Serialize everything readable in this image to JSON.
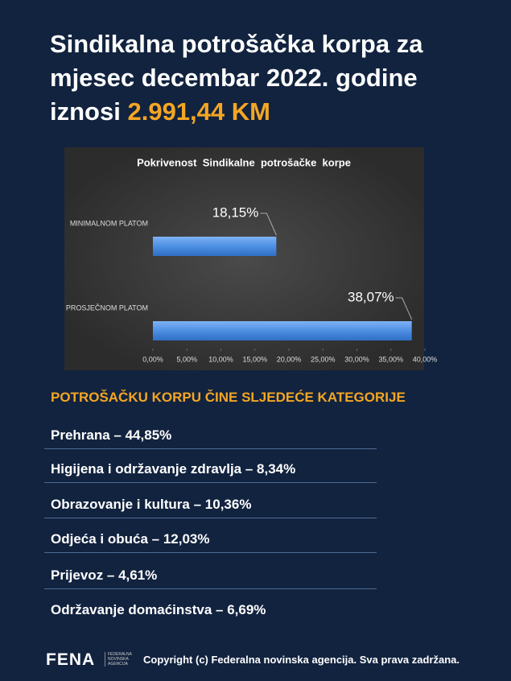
{
  "header": {
    "title": "Sindikalna potrošačka korpa za mjesec decembar 2022. godine iznosi",
    "highlight": "2.991,44 KM"
  },
  "chart_data": {
    "type": "hbar",
    "title": "Pokrivenost  Sindikalne  potrošačke  korpe",
    "categories": [
      "MINIMALNOM PLATOM",
      "PROSJEČNOM PLATOM"
    ],
    "values": [
      18.15,
      38.07
    ],
    "value_labels": [
      "18,15%",
      "38,07%"
    ],
    "color": "#4d8fe3",
    "xlim": [
      0,
      40
    ],
    "xticks": [
      {
        "value": 0,
        "label": "0,00%"
      },
      {
        "value": 5,
        "label": "5,00%"
      },
      {
        "value": 10,
        "label": "10,00%"
      },
      {
        "value": 15,
        "label": "15,00%"
      },
      {
        "value": 20,
        "label": "20,00%"
      },
      {
        "value": 25,
        "label": "25,00%"
      },
      {
        "value": 30,
        "label": "30,00%"
      },
      {
        "value": 35,
        "label": "35,00%"
      },
      {
        "value": 40,
        "label": "40,00%"
      }
    ]
  },
  "categories_section": {
    "heading": "POTROŠAČKU KORPU ČINE SLJEDEĆE KATEGORIJE",
    "items": [
      "Prehrana – 44,85%",
      "Higijena i održavanje zdravlja – 8,34%",
      "Obrazovanje i kultura – 10,36%",
      "Odjeća i obuća – 12,03%",
      "Prijevoz – 4,61%",
      "Održavanje domaćinstva – 6,69%"
    ]
  },
  "footer": {
    "logo": "FENA",
    "logo_sub": [
      "FEDERALNA",
      "NOVINSKA",
      "AGENCIJA"
    ],
    "copyright": "Copyright (c) Federalna novinska agencija. Sva prava zadržana."
  }
}
